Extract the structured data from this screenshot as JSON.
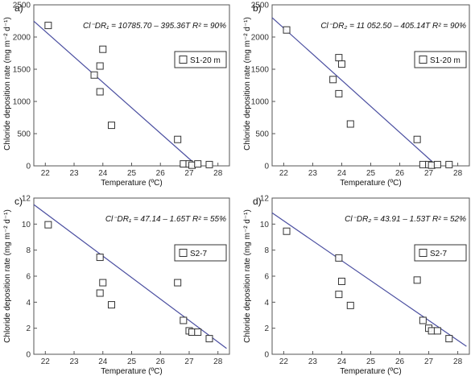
{
  "chart_data": [
    {
      "type": "scatter",
      "panel_label": "a)",
      "equation": "Cl⁻DR₁ = 10785.70 – 395.36T  R² = 90%",
      "legend": "S1-20 m",
      "legend_position": "top-right",
      "xlabel": "Temperature (ºC)",
      "ylabel": "Chloride deposition rate (mg m⁻² d⁻¹)",
      "xlim": [
        21.6,
        28.4
      ],
      "ylim": [
        0,
        2500
      ],
      "xticks": [
        22,
        23,
        24,
        25,
        26,
        27,
        28
      ],
      "yticks": [
        0,
        500,
        1000,
        1500,
        2000,
        2500
      ],
      "grid": false,
      "points": {
        "x": [
          22.1,
          23.7,
          23.9,
          23.9,
          24.0,
          24.3,
          26.6,
          26.8,
          27.0,
          27.1,
          27.3,
          27.7
        ],
        "y": [
          2180,
          1410,
          1550,
          1150,
          1810,
          630,
          410,
          30,
          30,
          10,
          30,
          20
        ]
      },
      "fit": {
        "x": [
          21.6,
          27.28
        ],
        "y": [
          2246,
          0
        ]
      }
    },
    {
      "type": "scatter",
      "panel_label": "b)",
      "equation": "Cl⁻DR₂ = 11 052.50 – 405.14T  R² = 90%",
      "legend": "S1-20 m",
      "legend_position": "top-right",
      "xlabel": "Temperature (ºC)",
      "ylabel": "Chloride deposition rate (mg m⁻² d⁻¹)",
      "xlim": [
        21.6,
        28.4
      ],
      "ylim": [
        0,
        2500
      ],
      "xticks": [
        22,
        23,
        24,
        25,
        26,
        27,
        28
      ],
      "yticks": [
        0,
        500,
        1000,
        1500,
        2000,
        2500
      ],
      "grid": false,
      "points": {
        "x": [
          22.1,
          23.7,
          23.9,
          23.9,
          24.0,
          24.3,
          26.6,
          26.8,
          27.0,
          27.1,
          27.3,
          27.7
        ],
        "y": [
          2110,
          1340,
          1680,
          1120,
          1580,
          650,
          410,
          20,
          20,
          10,
          20,
          20
        ]
      },
      "fit": {
        "x": [
          21.6,
          27.28
        ],
        "y": [
          2301,
          0
        ]
      }
    },
    {
      "type": "scatter",
      "panel_label": "c)",
      "equation": "Cl⁻DR₁ = 47.14 – 1.65T  R² = 55%",
      "legend": "S2-7",
      "legend_position": "top-right",
      "xlabel": "Temperature (ºC)",
      "ylabel": "Chloride deposition rate (mg m⁻² d⁻¹)",
      "xlim": [
        21.6,
        28.4
      ],
      "ylim": [
        0,
        12
      ],
      "xticks": [
        22,
        23,
        24,
        25,
        26,
        27,
        28
      ],
      "yticks": [
        0,
        2,
        4,
        6,
        8,
        10,
        12
      ],
      "grid": false,
      "points": {
        "x": [
          22.1,
          23.9,
          23.9,
          24.0,
          24.3,
          26.6,
          26.8,
          27.0,
          27.1,
          27.3,
          27.7
        ],
        "y": [
          9.95,
          7.45,
          4.7,
          5.5,
          3.8,
          5.5,
          2.6,
          1.8,
          1.7,
          1.7,
          1.2
        ]
      },
      "fit": {
        "x": [
          21.6,
          28.3
        ],
        "y": [
          11.5,
          0.45
        ]
      }
    },
    {
      "type": "scatter",
      "panel_label": "d)",
      "equation": "Cl⁻DR₂ = 43.91 – 1.53T  R² = 52%",
      "legend": "S2-7",
      "legend_position": "top-right",
      "xlabel": "Temperature (ºC)",
      "ylabel": "Chloride deposition rate (mg m⁻² d⁻¹)",
      "xlim": [
        21.6,
        28.4
      ],
      "ylim": [
        0,
        12
      ],
      "xticks": [
        22,
        23,
        24,
        25,
        26,
        27,
        28
      ],
      "yticks": [
        0,
        2,
        4,
        6,
        8,
        10,
        12
      ],
      "grid": false,
      "points": {
        "x": [
          22.1,
          23.9,
          23.9,
          24.0,
          24.3,
          26.6,
          26.8,
          27.0,
          27.1,
          27.3,
          27.7
        ],
        "y": [
          9.45,
          7.4,
          4.6,
          5.6,
          3.75,
          5.7,
          2.6,
          2.0,
          1.8,
          1.8,
          1.2
        ]
      },
      "fit": {
        "x": [
          21.6,
          28.3
        ],
        "y": [
          10.86,
          0.61
        ]
      }
    }
  ],
  "style": {
    "fit_line_color": "#4a4ea0",
    "marker_edge_color": "#333333",
    "axis_color": "#555555"
  }
}
